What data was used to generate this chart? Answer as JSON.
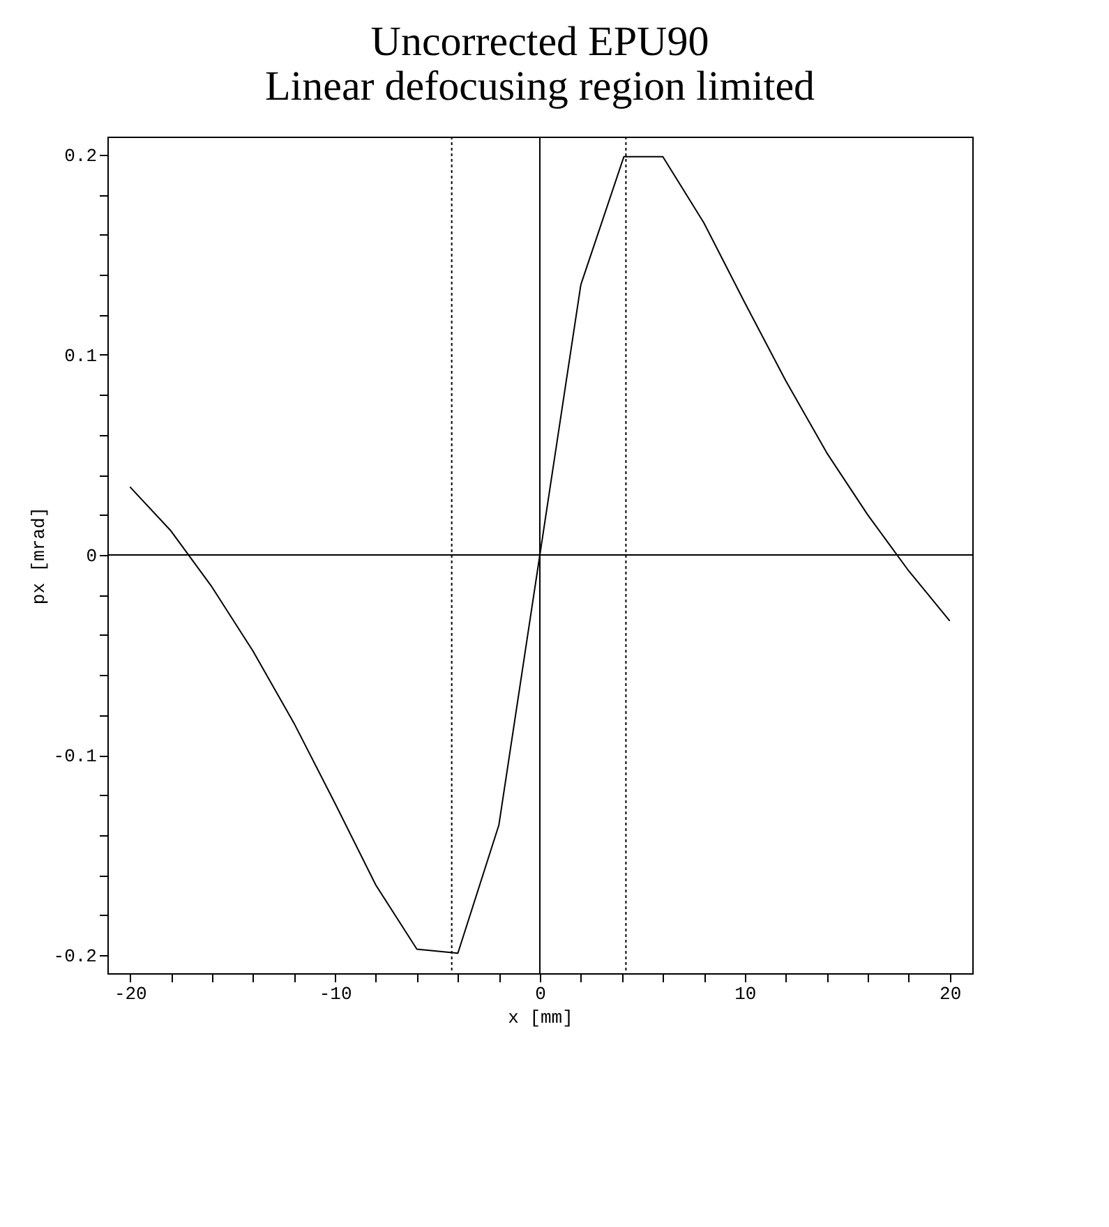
{
  "chart_data": {
    "type": "line",
    "title": [
      "Uncorrected EPU90",
      "Linear defocusing region limited"
    ],
    "xlabel": "x [mm]",
    "ylabel": "px [mrad]",
    "x": [
      -20,
      -18,
      -16,
      -14,
      -12,
      -10,
      -8,
      -6,
      -4,
      -2,
      0,
      2,
      4.1,
      6,
      8,
      10,
      12,
      14,
      16,
      18,
      20
    ],
    "series": [
      {
        "color": "#000000",
        "values": [
          0.034,
          0.012,
          -0.016,
          -0.048,
          -0.084,
          -0.124,
          -0.165,
          -0.197,
          -0.199,
          -0.135,
          0,
          0.135,
          0.199,
          0.199,
          0.166,
          0.126,
          0.087,
          0.051,
          0.02,
          -0.008,
          -0.033
        ]
      }
    ],
    "xlim": [
      -21.1,
      21.1
    ],
    "ylim": [
      -0.209,
      0.209
    ],
    "xticks": [
      -20,
      {
        "value": -18,
        "label": null
      },
      {
        "value": -16,
        "label": null
      },
      {
        "value": -14,
        "label": null
      },
      {
        "value": -12,
        "label": null
      },
      -10,
      {
        "value": -8,
        "label": null
      },
      {
        "value": -6,
        "label": null
      },
      {
        "value": -4,
        "label": null
      },
      {
        "value": -2,
        "label": null
      },
      0,
      {
        "value": 2,
        "label": null
      },
      {
        "value": 4,
        "label": null
      },
      {
        "value": 6,
        "label": null
      },
      {
        "value": 8,
        "label": null
      },
      10,
      {
        "value": 12,
        "label": null
      },
      {
        "value": 14,
        "label": null
      },
      {
        "value": 16,
        "label": null
      },
      {
        "value": 18,
        "label": null
      },
      20
    ],
    "yticks": [
      -0.2,
      {
        "value": -0.18,
        "label": null
      },
      {
        "value": -0.16,
        "label": null
      },
      {
        "value": -0.14,
        "label": null
      },
      {
        "value": -0.12,
        "label": null
      },
      -0.1,
      {
        "value": -0.08,
        "label": null
      },
      {
        "value": -0.06,
        "label": null
      },
      {
        "value": -0.04,
        "label": null
      },
      {
        "value": -0.02,
        "label": null
      },
      0,
      {
        "value": 0.02,
        "label": null
      },
      {
        "value": 0.04,
        "label": null
      },
      {
        "value": 0.06,
        "label": null
      },
      {
        "value": 0.08,
        "label": null
      },
      0.1,
      {
        "value": 0.12,
        "label": null
      },
      {
        "value": 0.14,
        "label": null
      },
      {
        "value": 0.16,
        "label": null
      },
      {
        "value": 0.18,
        "label": null
      },
      0.2
    ],
    "ref_lines": [
      {
        "axis": "x",
        "value": 0,
        "color": "#000000",
        "line_style": "solid"
      },
      {
        "axis": "y",
        "value": 0,
        "color": "#000000",
        "line_style": "solid"
      },
      {
        "axis": "x",
        "value": -4.3,
        "color": "#000000",
        "line_style": "dotted"
      },
      {
        "axis": "x",
        "value": 4.2,
        "color": "#000000",
        "line_style": "dotted"
      }
    ],
    "grid": false,
    "marker": "none",
    "line_style": "solid"
  }
}
